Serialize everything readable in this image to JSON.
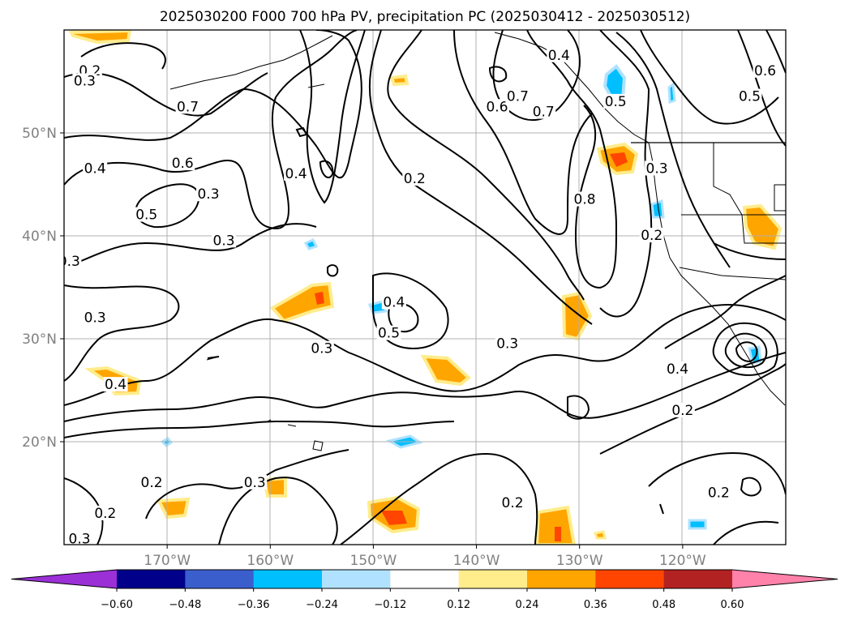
{
  "chart_data": {
    "type": "contour-map",
    "title": "2025030200 F000 700 hPa PV, precipitation PC (2025030412 - 2025030512)",
    "x_ticks": [
      "170°W",
      "160°W",
      "150°W",
      "140°W",
      "130°W",
      "120°W"
    ],
    "x_tick_values": [
      -170,
      -160,
      -150,
      -140,
      -130,
      -120
    ],
    "y_ticks": [
      "50°N",
      "40°N",
      "30°N",
      "20°N"
    ],
    "y_tick_values": [
      50,
      40,
      30,
      20
    ],
    "lon_range": [
      -180,
      -110
    ],
    "lat_range": [
      10,
      60
    ],
    "grid": true,
    "colorbar": {
      "orientation": "horizontal",
      "extend": "both",
      "levels": [
        -0.6,
        -0.48,
        -0.36,
        -0.24,
        -0.12,
        0.12,
        0.24,
        0.36,
        0.48,
        0.6
      ],
      "tick_labels": [
        "−0.60",
        "−0.48",
        "−0.36",
        "−0.24",
        "−0.12",
        "0.12",
        "0.24",
        "0.36",
        "0.48",
        "0.60"
      ],
      "colors": [
        "#9b30d6",
        "#00008b",
        "#3a5fcd",
        "#00bfff",
        "#b0e2ff",
        "#ffffff",
        "#ffec8b",
        "#ffa500",
        "#ff4500",
        "#b22222",
        "#ff82ab"
      ]
    },
    "contour_labels": [
      {
        "text": "0.2",
        "lon": -177.5,
        "lat": 56.0
      },
      {
        "text": "0.3",
        "lon": -178.0,
        "lat": 55.0
      },
      {
        "text": "0.7",
        "lon": -168.0,
        "lat": 52.5
      },
      {
        "text": "0.6",
        "lon": -168.5,
        "lat": 47.0
      },
      {
        "text": "0.4",
        "lon": -177.0,
        "lat": 46.5
      },
      {
        "text": "0.5",
        "lon": -172.0,
        "lat": 42.0
      },
      {
        "text": "0.3",
        "lon": -164.5,
        "lat": 39.5
      },
      {
        "text": "0.3",
        "lon": -166.0,
        "lat": 44.0
      },
      {
        "text": "0.4",
        "lon": -157.5,
        "lat": 46.0
      },
      {
        "text": "0.3",
        "lon": -179.5,
        "lat": 37.5
      },
      {
        "text": "0.2",
        "lon": -146.0,
        "lat": 45.5
      },
      {
        "text": "0.6",
        "lon": -138.0,
        "lat": 52.5
      },
      {
        "text": "0.7",
        "lon": -136.0,
        "lat": 53.5
      },
      {
        "text": "0.7",
        "lon": -133.5,
        "lat": 52.0
      },
      {
        "text": "0.4",
        "lon": -132.0,
        "lat": 57.5
      },
      {
        "text": "0.5",
        "lon": -126.5,
        "lat": 53.0
      },
      {
        "text": "0.8",
        "lon": -129.5,
        "lat": 43.5
      },
      {
        "text": "0.3",
        "lon": -122.5,
        "lat": 46.5
      },
      {
        "text": "0.2",
        "lon": -123.0,
        "lat": 40.0
      },
      {
        "text": "0.6",
        "lon": -112.0,
        "lat": 56.0
      },
      {
        "text": "0.5",
        "lon": -113.5,
        "lat": 53.5
      },
      {
        "text": "0.3",
        "lon": -177.0,
        "lat": 32.0
      },
      {
        "text": "0.4",
        "lon": -175.0,
        "lat": 25.5
      },
      {
        "text": "0.3",
        "lon": -155.0,
        "lat": 29.0
      },
      {
        "text": "0.4",
        "lon": -148.0,
        "lat": 33.5
      },
      {
        "text": "0.5",
        "lon": -148.5,
        "lat": 30.5
      },
      {
        "text": "0.3",
        "lon": -137.0,
        "lat": 29.5
      },
      {
        "text": "0.4",
        "lon": -120.5,
        "lat": 27.0
      },
      {
        "text": "0.2",
        "lon": -120.0,
        "lat": 23.0
      },
      {
        "text": "0.2",
        "lon": -171.5,
        "lat": 16.0
      },
      {
        "text": "0.3",
        "lon": -161.5,
        "lat": 16.0
      },
      {
        "text": "0.2",
        "lon": -176.0,
        "lat": 13.0
      },
      {
        "text": "0.2",
        "lon": -136.5,
        "lat": 14.0
      },
      {
        "text": "0.2",
        "lon": -116.5,
        "lat": 15.0
      },
      {
        "text": "0.3",
        "lon": -178.5,
        "lat": 10.5
      }
    ]
  }
}
